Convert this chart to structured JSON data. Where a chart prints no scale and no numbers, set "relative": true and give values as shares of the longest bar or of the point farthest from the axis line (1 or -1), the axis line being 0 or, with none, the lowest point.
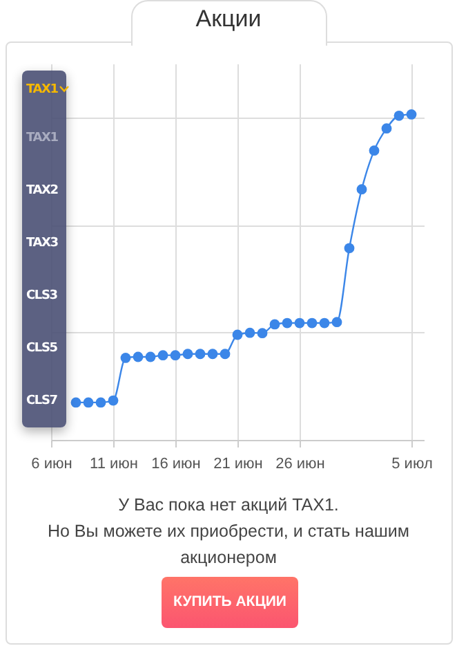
{
  "chart_data": {
    "type": "line",
    "title": "Акции",
    "relative": true,
    "grid": true,
    "marker": "circle",
    "line_style": "solid",
    "x": [
      "--06-08",
      "--06-09",
      "--06-10",
      "--06-11",
      "--06-12",
      "--06-13",
      "--06-14",
      "--06-15",
      "--06-16",
      "--06-17",
      "--06-18",
      "--06-19",
      "--06-20",
      "--06-21",
      "--06-22",
      "--06-23",
      "--06-24",
      "--06-25",
      "--06-26",
      "--06-27",
      "--06-28",
      "--06-29",
      "--06-30",
      "--07-01",
      "--07-02",
      "--07-03",
      "--07-04",
      "--07-05"
    ],
    "xlim": [
      "--06-06",
      "--07-06"
    ],
    "xticks": [
      {
        "value": "--06-06",
        "label": "6 июн"
      },
      {
        "value": "--06-11",
        "label": "11 июн"
      },
      {
        "value": "--06-16",
        "label": "16 июн"
      },
      {
        "value": "--06-21",
        "label": "21 июн"
      },
      {
        "value": "--06-26",
        "label": "26 июн"
      },
      {
        "value": "--07-05",
        "label": "5 июл"
      }
    ],
    "series": [
      {
        "color": "#3b86e8",
        "values": [
          0.115,
          0.115,
          0.115,
          0.121,
          0.252,
          0.255,
          0.255,
          0.26,
          0.26,
          0.264,
          0.264,
          0.264,
          0.264,
          0.323,
          0.329,
          0.328,
          0.355,
          0.359,
          0.359,
          0.359,
          0.359,
          0.362,
          0.589,
          0.77,
          0.889,
          0.957,
          0.996,
          1
        ]
      }
    ],
    "annotations": [
      "TAX1",
      "TAX1",
      "TAX2",
      "TAX3",
      "CLS3",
      "CLS5",
      "CLS7",
      "У Вас пока нет акций TAX1.",
      "Но Вы можете их приобрести, и стать нашим акционером",
      "КУПИТЬ АКЦИИ"
    ]
  }
}
